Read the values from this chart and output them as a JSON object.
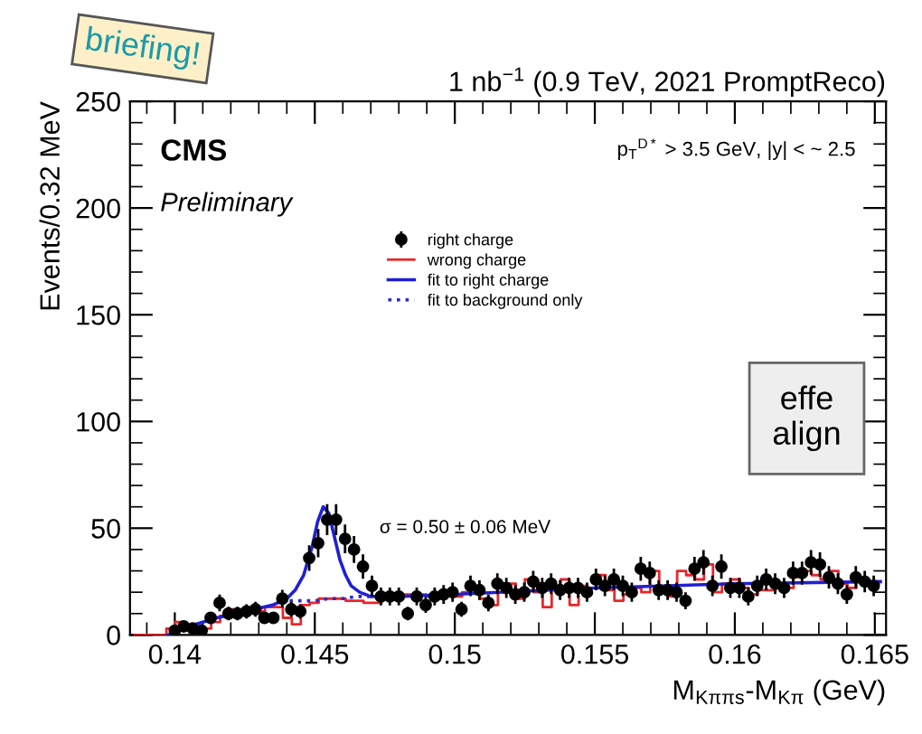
{
  "chart_data": {
    "type": "scatter",
    "title": "1 nb$^{−1}$ (0.9 TeV, 2021 PromptReco)",
    "xlabel": "M$_{Kππs}$-M$_{Kπ}$ (GeV)",
    "ylabel": "Events/0.32 MeV",
    "xlim": [
      0.1384,
      0.1654
    ],
    "xticks": [
      0.14,
      0.145,
      0.15,
      0.155,
      0.16,
      0.165
    ],
    "ylim": [
      0,
      250
    ],
    "yticks": [
      0,
      50,
      100,
      150,
      200,
      250
    ],
    "legend": "top",
    "grid": false,
    "annotations": [
      "CMS",
      "Preliminary",
      "p$_{T}$$^{D*}$ > 3.5 GeV, |y| < ~ 2.5",
      "σ = 0.50 ± 0.06 MeV",
      "briefing!",
      "effe\nalign"
    ],
    "series": [
      {
        "name": "right charge",
        "marker": "circle",
        "color": "#000000",
        "x": [
          0.14,
          0.14032,
          0.14064,
          0.14096,
          0.14128,
          0.1416,
          0.14192,
          0.14224,
          0.14256,
          0.14288,
          0.1432,
          0.14352,
          0.14384,
          0.14416,
          0.14448,
          0.1448,
          0.14512,
          0.14544,
          0.14576,
          0.14608,
          0.1464,
          0.14672,
          0.14704,
          0.14736,
          0.14768,
          0.148,
          0.14832,
          0.14864,
          0.14896,
          0.14928,
          0.1496,
          0.14992,
          0.15024,
          0.15056,
          0.15088,
          0.1512,
          0.15152,
          0.15184,
          0.15216,
          0.15248,
          0.1528,
          0.15312,
          0.15344,
          0.15376,
          0.15408,
          0.1544,
          0.15472,
          0.15504,
          0.15536,
          0.15568,
          0.156,
          0.15632,
          0.15664,
          0.15696,
          0.15728,
          0.1576,
          0.15792,
          0.15824,
          0.15856,
          0.15888,
          0.1592,
          0.15952,
          0.15984,
          0.16016,
          0.16048,
          0.1608,
          0.16112,
          0.16144,
          0.16176,
          0.16208,
          0.1624,
          0.16272,
          0.16304,
          0.16336,
          0.16368,
          0.164,
          0.16432,
          0.16464,
          0.16496
        ],
        "values": [
          2,
          4,
          3,
          2,
          8,
          15,
          10,
          10,
          11,
          12,
          8,
          8,
          17,
          12,
          11,
          36,
          43,
          54,
          54,
          45,
          40,
          32,
          23,
          18,
          18,
          18,
          10,
          18,
          14,
          18,
          19,
          20,
          12,
          23,
          21,
          15,
          24,
          22,
          19,
          20,
          25,
          22,
          24,
          21,
          22,
          22,
          20,
          26,
          23,
          26,
          23,
          20,
          31,
          29,
          21,
          21,
          20,
          16,
          31,
          34,
          23,
          32,
          22,
          22,
          18,
          23,
          26,
          24,
          22,
          29,
          29,
          34,
          33,
          27,
          24,
          19,
          27,
          25,
          23
        ],
        "errors": [
          1.4,
          2,
          1.7,
          1.4,
          2.8,
          3.9,
          3.2,
          3.2,
          3.3,
          3.5,
          2.8,
          2.8,
          4.1,
          3.5,
          3.3,
          6,
          6.6,
          7.3,
          7.3,
          6.7,
          6.3,
          5.7,
          4.8,
          4.2,
          4.2,
          4.2,
          3.2,
          4.2,
          3.7,
          4.2,
          4.4,
          4.5,
          3.5,
          4.8,
          4.6,
          3.9,
          4.9,
          4.7,
          4.4,
          4.5,
          5,
          4.7,
          4.9,
          4.6,
          4.7,
          4.7,
          4.5,
          5.1,
          4.8,
          5.1,
          4.8,
          4.5,
          5.6,
          5.4,
          4.6,
          4.6,
          4.5,
          4,
          5.6,
          5.8,
          4.8,
          5.7,
          4.7,
          4.7,
          4.2,
          4.8,
          5.1,
          4.9,
          4.7,
          5.4,
          5.4,
          5.8,
          5.7,
          5.2,
          4.9,
          4.4,
          5.2,
          5,
          4.8
        ]
      },
      {
        "name": "wrong charge",
        "type": "step",
        "color": "#e8262a",
        "line_style": "solid",
        "x": [
          0.13856,
          0.1389,
          0.13922,
          0.13954,
          0.13986,
          0.14018,
          0.1405,
          0.14082,
          0.14114,
          0.14146,
          0.14178,
          0.1421,
          0.14242,
          0.14274,
          0.14306,
          0.14338,
          0.1437,
          0.14402,
          0.14434,
          0.14466,
          0.14498,
          0.1453,
          0.14562,
          0.14594,
          0.14626,
          0.14658,
          0.1469,
          0.14722,
          0.14754,
          0.14786,
          0.14818,
          0.1485,
          0.14882,
          0.14914,
          0.14946,
          0.14978,
          0.1501,
          0.15042,
          0.15074,
          0.15106,
          0.15138,
          0.1517,
          0.15202,
          0.15234,
          0.15266,
          0.15298,
          0.1533,
          0.15362,
          0.15394,
          0.15426,
          0.15458,
          0.1549,
          0.15522,
          0.15554,
          0.15586,
          0.15618,
          0.1565,
          0.15682,
          0.15714,
          0.15746,
          0.15778,
          0.1581,
          0.15842,
          0.15874,
          0.15906,
          0.15938,
          0.1597,
          0.16002,
          0.16034,
          0.16066,
          0.16098,
          0.1613,
          0.16162,
          0.16194,
          0.16226,
          0.16258,
          0.1629,
          0.16322,
          0.16354,
          0.16386,
          0.16418,
          0.1645,
          0.16482,
          0.16514
        ],
        "values": [
          0,
          0,
          0,
          0,
          3,
          6,
          4,
          3,
          3,
          6,
          9,
          12,
          11,
          13,
          11,
          13,
          13,
          8,
          5,
          14,
          15,
          17,
          17,
          17,
          16,
          16,
          15,
          15,
          17,
          19,
          19,
          19,
          19,
          18,
          17,
          19,
          18,
          20,
          21,
          17,
          14,
          22,
          24,
          17,
          26,
          20,
          13,
          22,
          26,
          14,
          23,
          22,
          28,
          21,
          16,
          19,
          22,
          20,
          30,
          22,
          18,
          30,
          28,
          26,
          33,
          20,
          24,
          26,
          22,
          19,
          21,
          21,
          24,
          22,
          27,
          30,
          28,
          26,
          30,
          24,
          22,
          26,
          24,
          24
        ]
      },
      {
        "name": "fit to right charge",
        "type": "line",
        "color": "#1f1fd6",
        "line_style": "solid",
        "marker": "none",
        "x": [
          0.13975,
          0.1405,
          0.1415,
          0.1425,
          0.1435,
          0.144,
          0.1443,
          0.1446,
          0.1449,
          0.1451,
          0.1453,
          0.1455,
          0.1457,
          0.1459,
          0.1461,
          0.1463,
          0.1466,
          0.147,
          0.148,
          0.15,
          0.155,
          0.16,
          0.1652
        ],
        "values": [
          0,
          4,
          8,
          11,
          14,
          17,
          21,
          28,
          41,
          53,
          60,
          57,
          46,
          35,
          28,
          23,
          20,
          18,
          18,
          19,
          22,
          24,
          25
        ]
      },
      {
        "name": "fit to background only",
        "type": "line",
        "color": "#2a2ac8",
        "line_style": "dotted",
        "marker": "none",
        "x": [
          0.1441,
          0.1445,
          0.145,
          0.1455,
          0.146,
          0.1465,
          0.147
        ],
        "values": [
          16,
          16,
          16,
          17,
          17,
          18,
          18
        ]
      }
    ]
  }
}
